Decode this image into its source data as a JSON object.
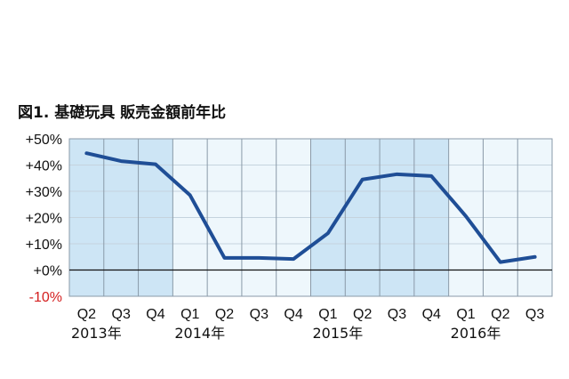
{
  "chart_data": {
    "type": "line",
    "title": "図1.  基礎玩具  販売金額前年比",
    "categories": [
      "Q2",
      "Q3",
      "Q4",
      "Q1",
      "Q2",
      "Q3",
      "Q4",
      "Q1",
      "Q2",
      "Q3",
      "Q4",
      "Q1",
      "Q2",
      "Q3"
    ],
    "year_labels": [
      {
        "index": 0,
        "label": "2013年"
      },
      {
        "index": 3,
        "label": "2014年"
      },
      {
        "index": 7,
        "label": "2015年"
      },
      {
        "index": 11,
        "label": "2016年"
      }
    ],
    "values": [
      44.5,
      41.5,
      40.3,
      28.5,
      4.6,
      4.6,
      4.2,
      14.0,
      34.5,
      36.5,
      35.8,
      20.5,
      3.0,
      5.0
    ],
    "ylim": [
      -10,
      50
    ],
    "yticks": [
      "+50%",
      "+40%",
      "+30%",
      "+20%",
      "+10%",
      "+0%",
      "-10%"
    ],
    "grid": true,
    "colors": {
      "line": "#1f4e96",
      "shade_dark": "#cde5f5",
      "shade_light": "#eef7fc",
      "negative_tick": "#d42020",
      "grid": "#8a9aa8"
    }
  }
}
